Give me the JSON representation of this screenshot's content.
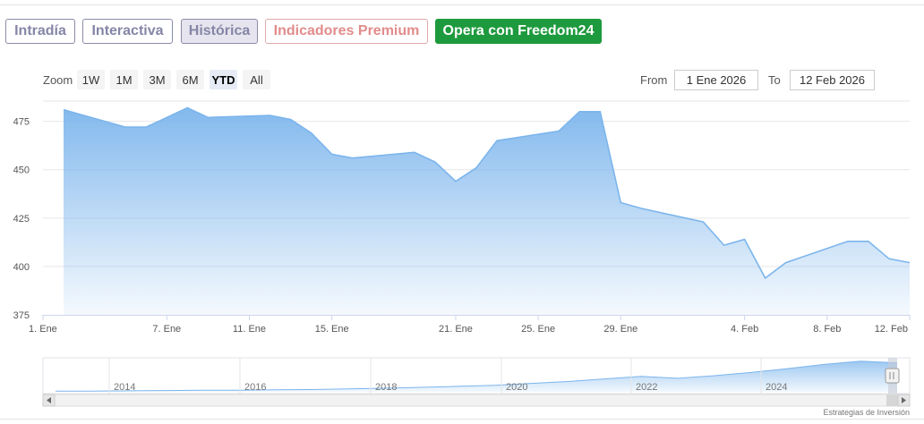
{
  "tabs": [
    {
      "label": "Intradía",
      "variant": "default"
    },
    {
      "label": "Interactiva",
      "variant": "default"
    },
    {
      "label": "Histórica",
      "variant": "active"
    },
    {
      "label": "Indicadores Premium",
      "variant": "premium"
    },
    {
      "label": "Opera con Freedom24",
      "variant": "freedom"
    }
  ],
  "zoom": {
    "label": "Zoom",
    "buttons": [
      "1W",
      "1M",
      "3M",
      "6M",
      "YTD",
      "All"
    ],
    "selected": "YTD"
  },
  "range": {
    "from_label": "From",
    "from_value": "1 Ene 2026",
    "to_label": "To",
    "to_value": "12 Feb 2026"
  },
  "colors": {
    "line": "#7cb5ec",
    "area_top": "#7cb5ec",
    "grid": "#e6e6e6",
    "tab_border": "#8a8ca8",
    "premium": "#e28b8b",
    "freedom_green": "#1e9a3e"
  },
  "chart_data": {
    "type": "area",
    "title": "",
    "xlabel": "",
    "ylabel": "",
    "ylim": [
      375,
      485
    ],
    "yticks": [
      375,
      400,
      425,
      450,
      475
    ],
    "x_tick_labels": [
      "1. Ene",
      "7. Ene",
      "11. Ene",
      "15. Ene",
      "21. Ene",
      "25. Ene",
      "29. Ene",
      "4. Feb",
      "8. Feb",
      "12. Feb"
    ],
    "grid": true,
    "legend": "none",
    "series": [
      {
        "dates": [
          "2026-01-02",
          "2026-01-05",
          "2026-01-06",
          "2026-01-07",
          "2026-01-08",
          "2026-01-09",
          "2026-01-12",
          "2026-01-13",
          "2026-01-14",
          "2026-01-15",
          "2026-01-16",
          "2026-01-19",
          "2026-01-20",
          "2026-01-21",
          "2026-01-22",
          "2026-01-23",
          "2026-01-26",
          "2026-01-27",
          "2026-01-28",
          "2026-01-29",
          "2026-01-30",
          "2026-02-02",
          "2026-02-03",
          "2026-02-04",
          "2026-02-05",
          "2026-02-06",
          "2026-02-09",
          "2026-02-10",
          "2026-02-11",
          "2026-02-12"
        ],
        "values": [
          481,
          472,
          472,
          477,
          482,
          477,
          478,
          476,
          469,
          458,
          456,
          459,
          454,
          444,
          451,
          465,
          470,
          480,
          480,
          433,
          430,
          423,
          411,
          414,
          394,
          402,
          413,
          413,
          404,
          402
        ]
      }
    ]
  },
  "navigator": {
    "year_labels": [
      "2014",
      "2016",
      "2018",
      "2020",
      "2022",
      "2024"
    ],
    "trend_values": [
      0.02,
      0.02,
      0.03,
      0.04,
      0.05,
      0.05,
      0.06,
      0.07,
      0.09,
      0.11,
      0.14,
      0.17,
      0.2,
      0.26,
      0.32,
      0.4,
      0.48,
      0.42,
      0.5,
      0.6,
      0.72,
      0.85,
      0.95,
      0.9
    ],
    "visible_window": "2026-01-02 / 2026-02-12"
  },
  "credit": "Estrategias de Inversión"
}
